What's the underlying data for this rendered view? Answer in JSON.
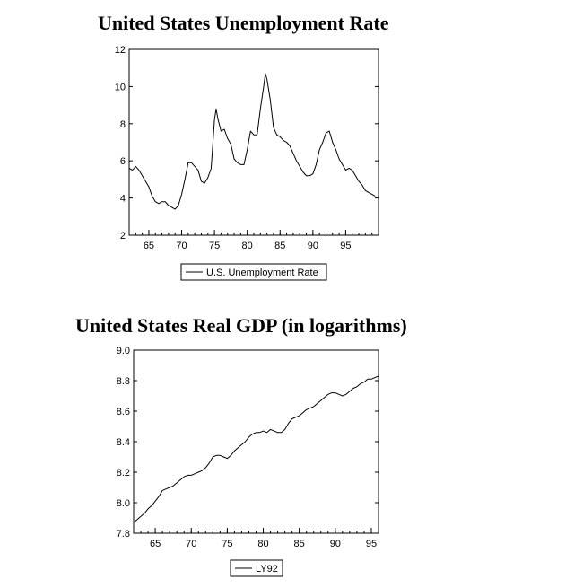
{
  "chart_data": [
    {
      "type": "line",
      "title": "United States Unemployment Rate",
      "xlabel": "",
      "ylabel": "",
      "xlim": [
        1962,
        2000
      ],
      "ylim": [
        2,
        12
      ],
      "xticks": [
        65,
        70,
        75,
        80,
        85,
        90,
        95
      ],
      "yticks": [
        2,
        4,
        6,
        8,
        10,
        12
      ],
      "grid": false,
      "legend_position": "bottom",
      "color": "#000000",
      "series": [
        {
          "name": "U.S. Unemployment Rate",
          "x": [
            1962.0,
            1962.5,
            1963.0,
            1963.5,
            1964.0,
            1964.5,
            1965.0,
            1965.5,
            1966.0,
            1966.5,
            1967.0,
            1967.5,
            1968.0,
            1968.5,
            1969.0,
            1969.5,
            1970.0,
            1970.5,
            1971.0,
            1971.5,
            1972.0,
            1972.5,
            1973.0,
            1973.5,
            1974.0,
            1974.5,
            1975.0,
            1975.25,
            1975.5,
            1976.0,
            1976.5,
            1977.0,
            1977.5,
            1978.0,
            1978.5,
            1979.0,
            1979.5,
            1980.0,
            1980.5,
            1981.0,
            1981.5,
            1982.0,
            1982.5,
            1982.75,
            1983.0,
            1983.5,
            1984.0,
            1984.5,
            1985.0,
            1985.5,
            1986.0,
            1986.5,
            1987.0,
            1987.5,
            1988.0,
            1988.5,
            1989.0,
            1989.5,
            1990.0,
            1990.5,
            1991.0,
            1991.5,
            1992.0,
            1992.5,
            1993.0,
            1993.5,
            1994.0,
            1994.5,
            1995.0,
            1995.5,
            1996.0,
            1996.5,
            1997.0,
            1997.5,
            1998.0,
            1998.5,
            1999.0,
            1999.5
          ],
          "values": [
            5.6,
            5.5,
            5.7,
            5.5,
            5.2,
            4.9,
            4.6,
            4.1,
            3.8,
            3.7,
            3.8,
            3.8,
            3.6,
            3.5,
            3.4,
            3.6,
            4.2,
            5.0,
            5.9,
            5.9,
            5.7,
            5.5,
            4.9,
            4.8,
            5.1,
            5.6,
            8.2,
            8.8,
            8.3,
            7.6,
            7.7,
            7.2,
            6.9,
            6.1,
            5.9,
            5.8,
            5.8,
            6.6,
            7.6,
            7.4,
            7.4,
            8.8,
            10.0,
            10.7,
            10.4,
            9.3,
            7.8,
            7.4,
            7.3,
            7.1,
            7.0,
            6.8,
            6.4,
            6.0,
            5.7,
            5.4,
            5.2,
            5.2,
            5.3,
            5.8,
            6.6,
            7.0,
            7.5,
            7.6,
            7.0,
            6.6,
            6.1,
            5.8,
            5.5,
            5.6,
            5.5,
            5.2,
            4.9,
            4.7,
            4.4,
            4.3,
            4.2,
            4.1
          ]
        }
      ]
    },
    {
      "type": "line",
      "title": "United States Real GDP (in logarithms)",
      "xlabel": "",
      "ylabel": "",
      "xlim": [
        1962,
        1996
      ],
      "ylim": [
        7.8,
        9.0
      ],
      "xticks": [
        65,
        70,
        75,
        80,
        85,
        90,
        95
      ],
      "yticks": [
        "7.8",
        "8.0",
        "8.2",
        "8.4",
        "8.6",
        "8.8",
        "9.0"
      ],
      "grid": false,
      "legend_position": "bottom",
      "color": "#000000",
      "series": [
        {
          "name": "LY92",
          "x": [
            1962.0,
            1962.5,
            1963.0,
            1963.5,
            1964.0,
            1964.5,
            1965.0,
            1965.5,
            1966.0,
            1966.5,
            1967.0,
            1967.5,
            1968.0,
            1968.5,
            1969.0,
            1969.5,
            1970.0,
            1970.5,
            1971.0,
            1971.5,
            1972.0,
            1972.5,
            1973.0,
            1973.5,
            1974.0,
            1974.5,
            1975.0,
            1975.5,
            1976.0,
            1976.5,
            1977.0,
            1977.5,
            1978.0,
            1978.5,
            1979.0,
            1979.5,
            1980.0,
            1980.5,
            1981.0,
            1981.5,
            1982.0,
            1982.5,
            1983.0,
            1983.5,
            1984.0,
            1984.5,
            1985.0,
            1985.5,
            1986.0,
            1986.5,
            1987.0,
            1987.5,
            1988.0,
            1988.5,
            1989.0,
            1989.5,
            1990.0,
            1990.5,
            1991.0,
            1991.5,
            1992.0,
            1992.5,
            1993.0,
            1993.5,
            1994.0,
            1994.5,
            1995.0,
            1995.5,
            1996.0
          ],
          "values": [
            7.87,
            7.89,
            7.91,
            7.93,
            7.96,
            7.98,
            8.01,
            8.04,
            8.08,
            8.09,
            8.1,
            8.11,
            8.13,
            8.15,
            8.17,
            8.18,
            8.18,
            8.19,
            8.2,
            8.21,
            8.23,
            8.26,
            8.3,
            8.31,
            8.31,
            8.3,
            8.29,
            8.31,
            8.34,
            8.36,
            8.38,
            8.4,
            8.43,
            8.45,
            8.46,
            8.46,
            8.47,
            8.46,
            8.48,
            8.47,
            8.46,
            8.46,
            8.48,
            8.52,
            8.55,
            8.56,
            8.57,
            8.59,
            8.61,
            8.62,
            8.63,
            8.65,
            8.67,
            8.69,
            8.71,
            8.72,
            8.72,
            8.71,
            8.7,
            8.71,
            8.73,
            8.75,
            8.76,
            8.78,
            8.79,
            8.81,
            8.81,
            8.82,
            8.83
          ]
        }
      ]
    }
  ]
}
